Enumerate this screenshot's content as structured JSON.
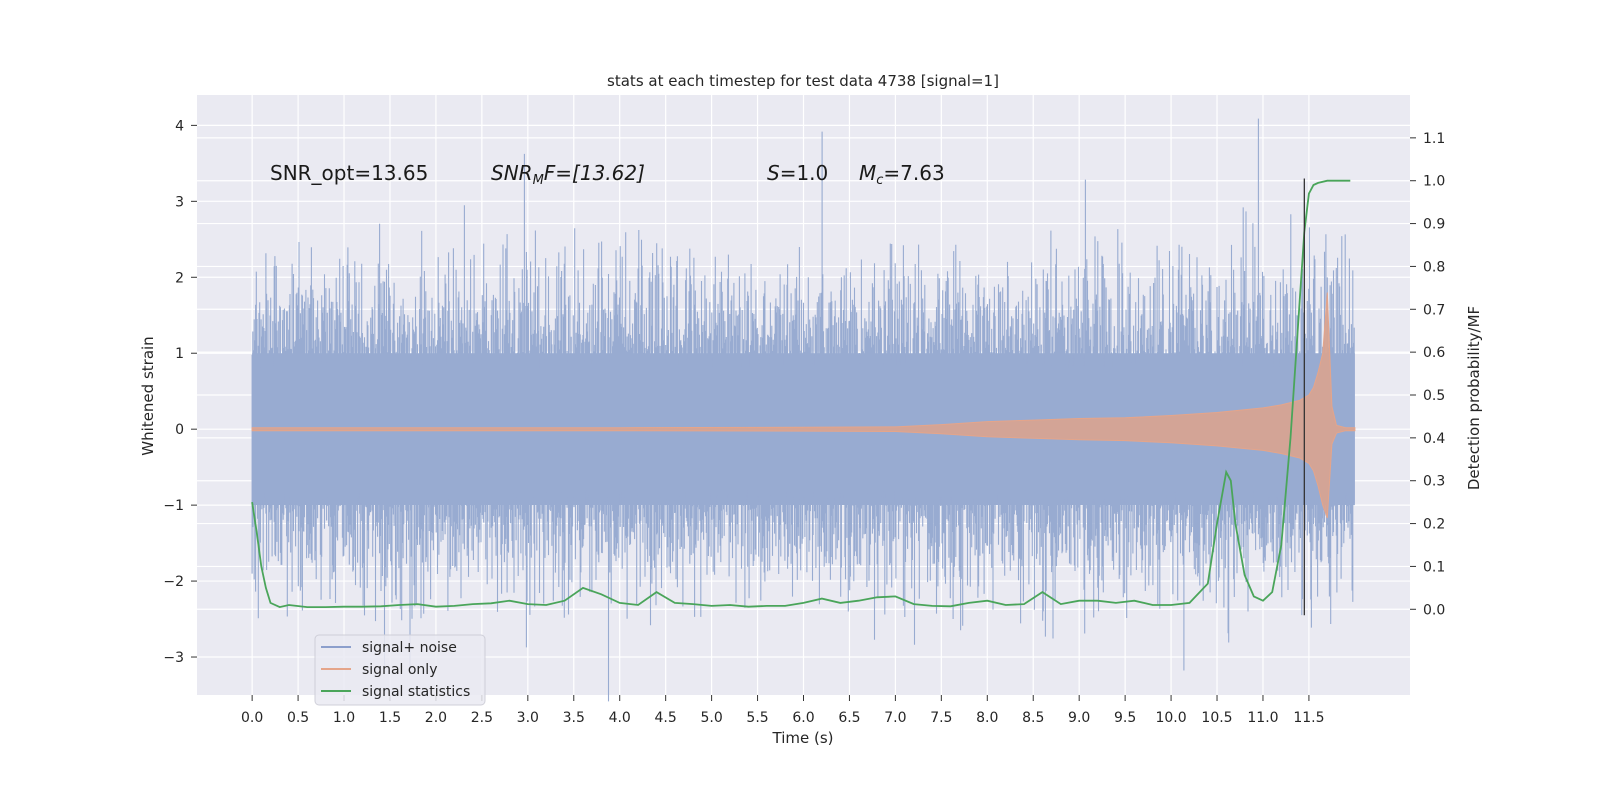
{
  "chart_data": {
    "type": "line",
    "title": "stats at each timestep for test data 4738 [signal=1]",
    "xlabel": "Time (s)",
    "ylabel_left": "Whitened strain",
    "ylabel_right": "Detection probability/MF",
    "xlim": [
      -0.6,
      12.6
    ],
    "ylim_left": [
      -3.5,
      4.4
    ],
    "ylim_right": [
      -0.2,
      1.2
    ],
    "x_ticks": [
      "0.0",
      "0.5",
      "1.0",
      "1.5",
      "2.0",
      "2.5",
      "3.0",
      "3.5",
      "4.0",
      "4.5",
      "5.0",
      "5.5",
      "6.0",
      "6.5",
      "7.0",
      "7.5",
      "8.0",
      "8.5",
      "9.0",
      "9.5",
      "10.0",
      "10.5",
      "11.0",
      "11.5"
    ],
    "y_ticks_left": [
      "−3",
      "−2",
      "−1",
      "0",
      "1",
      "2",
      "3",
      "4"
    ],
    "y_ticks_right": [
      "0.0",
      "0.1",
      "0.2",
      "0.3",
      "0.4",
      "0.5",
      "0.6",
      "0.7",
      "0.8",
      "0.9",
      "1.0",
      "1.1"
    ],
    "grid": true,
    "legend_position": "lower-left",
    "legend": [
      {
        "label": "signal+ noise",
        "color": "#8c9fcc"
      },
      {
        "label": "signal only",
        "color": "#e5a58a"
      },
      {
        "label": "signal statistics",
        "color": "#4aa55a"
      }
    ],
    "annotations": {
      "snr_opt": "SNR_opt=13.65",
      "snr_mf_main": "SNR",
      "snr_mf_sub": "M",
      "snr_mf_rest": "F=[13.62]",
      "s_main": "S",
      "s_rest": "=1.0",
      "mc_main": "M",
      "mc_sub": "c",
      "mc_rest": "=7.63"
    },
    "signal_statistics": {
      "axis": "right",
      "x": [
        0.0,
        0.05,
        0.1,
        0.15,
        0.2,
        0.3,
        0.4,
        0.6,
        0.8,
        1.0,
        1.2,
        1.4,
        1.6,
        1.8,
        2.0,
        2.2,
        2.4,
        2.6,
        2.8,
        3.0,
        3.2,
        3.4,
        3.6,
        3.8,
        4.0,
        4.2,
        4.4,
        4.6,
        4.8,
        5.0,
        5.2,
        5.4,
        5.6,
        5.8,
        6.0,
        6.2,
        6.4,
        6.6,
        6.8,
        7.0,
        7.2,
        7.4,
        7.6,
        7.8,
        8.0,
        8.2,
        8.4,
        8.6,
        8.8,
        9.0,
        9.2,
        9.4,
        9.6,
        9.8,
        10.0,
        10.2,
        10.4,
        10.5,
        10.6,
        10.65,
        10.7,
        10.8,
        10.9,
        11.0,
        11.1,
        11.2,
        11.3,
        11.4,
        11.45,
        11.5,
        11.55,
        11.6,
        11.7,
        11.8,
        11.9,
        11.95
      ],
      "y": [
        0.25,
        0.18,
        0.1,
        0.05,
        0.015,
        0.005,
        0.01,
        0.005,
        0.005,
        0.006,
        0.006,
        0.007,
        0.01,
        0.012,
        0.006,
        0.008,
        0.012,
        0.014,
        0.02,
        0.012,
        0.01,
        0.02,
        0.05,
        0.035,
        0.015,
        0.01,
        0.04,
        0.015,
        0.012,
        0.008,
        0.01,
        0.006,
        0.008,
        0.008,
        0.015,
        0.025,
        0.015,
        0.02,
        0.028,
        0.03,
        0.012,
        0.008,
        0.007,
        0.015,
        0.02,
        0.01,
        0.012,
        0.04,
        0.012,
        0.02,
        0.02,
        0.015,
        0.02,
        0.01,
        0.01,
        0.015,
        0.06,
        0.2,
        0.32,
        0.3,
        0.2,
        0.08,
        0.03,
        0.02,
        0.04,
        0.15,
        0.4,
        0.72,
        0.88,
        0.97,
        0.99,
        0.995,
        1.0,
        1.0,
        1.0,
        1.0
      ]
    },
    "signal_only": {
      "axis": "left",
      "envelope_x": [
        0.0,
        2.0,
        4.0,
        6.0,
        7.0,
        7.5,
        8.0,
        8.5,
        9.0,
        9.5,
        10.0,
        10.5,
        11.0,
        11.2,
        11.4,
        11.5,
        11.55,
        11.6,
        11.65,
        11.7,
        11.75,
        11.8,
        11.9,
        12.0
      ],
      "envelope_y": [
        0.02,
        0.02,
        0.02,
        0.025,
        0.03,
        0.06,
        0.1,
        0.12,
        0.14,
        0.15,
        0.18,
        0.22,
        0.28,
        0.32,
        0.38,
        0.45,
        0.55,
        0.75,
        1.0,
        1.8,
        0.3,
        0.05,
        0.02,
        0.02
      ]
    },
    "signal_plus_noise": {
      "axis": "left",
      "x_range": [
        0.0,
        12.0
      ],
      "core_amplitude": 1.0,
      "peak_amplitude_range": [
        -3.2,
        4.1
      ]
    },
    "vertical_marker": {
      "x": 11.45,
      "y_range": [
        -2.45,
        3.3
      ],
      "color": "#333333"
    }
  }
}
